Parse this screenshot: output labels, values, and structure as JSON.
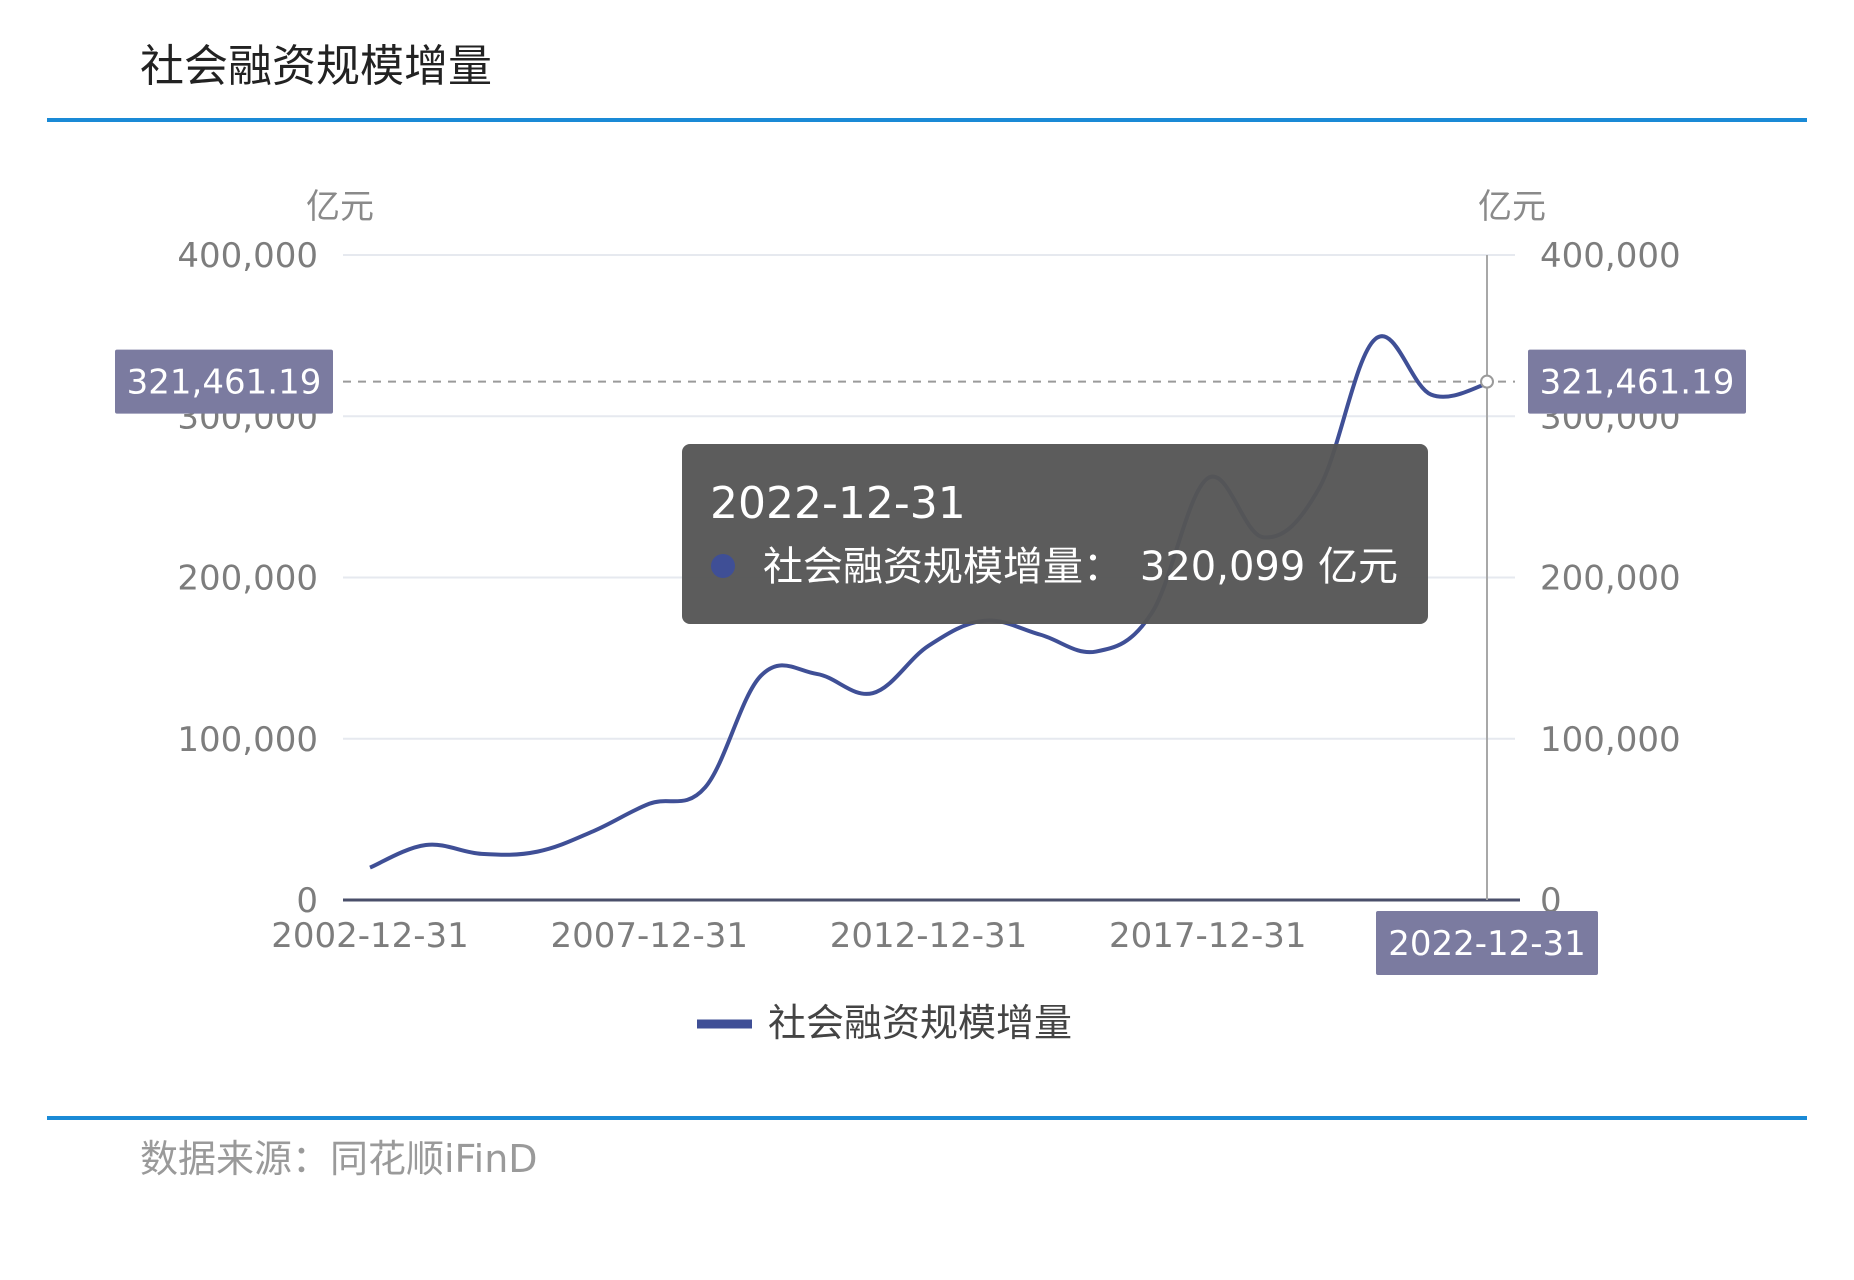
{
  "header": {
    "title": "社会融资规模增量"
  },
  "footer": {
    "source": "数据来源：同花顺iFinD"
  },
  "colors": {
    "line": "#3f4f96",
    "rule": "#1a8ad6",
    "tag": "#7b7ba0",
    "tooltip": "#555555"
  },
  "chart_data": {
    "type": "line",
    "ylabel_left": "亿元",
    "ylabel_right": "亿元",
    "ylim": [
      0,
      400000
    ],
    "yticks": [
      0,
      100000,
      200000,
      300000,
      400000
    ],
    "ytick_labels": [
      "0",
      "100,000",
      "200,000",
      "300,000",
      "400,000"
    ],
    "xtick_labels": [
      "2002-12-31",
      "2007-12-31",
      "2012-12-31",
      "2017-12-31",
      "2022-12-31"
    ],
    "legend": {
      "position": "bottom-center"
    },
    "grid": true,
    "series": [
      {
        "name": "社会融资规模增量",
        "x": [
          "2002-12-31",
          "2003-12-31",
          "2004-12-31",
          "2005-12-31",
          "2006-12-31",
          "2007-12-31",
          "2008-12-31",
          "2009-12-31",
          "2010-12-31",
          "2011-12-31",
          "2012-12-31",
          "2013-12-31",
          "2014-12-31",
          "2015-12-31",
          "2016-12-31",
          "2017-12-31",
          "2018-12-31",
          "2019-12-31",
          "2020-12-31",
          "2021-12-31",
          "2022-12-31"
        ],
        "values": [
          20112,
          34113,
          28629,
          30008,
          42696,
          59663,
          69802,
          139104,
          140191,
          128286,
          157631,
          173169,
          164571,
          154086,
          178159,
          261536,
          224920,
          255753,
          347919,
          313408,
          320099
        ]
      }
    ],
    "crosshair": {
      "x_label": "2022-12-31",
      "y_value_label": "321,461.19",
      "y_value": 321461.19
    },
    "tooltip": {
      "date": "2022-12-31",
      "series_name": "社会融资规模增量：",
      "value_text": "320,099 亿元"
    }
  }
}
